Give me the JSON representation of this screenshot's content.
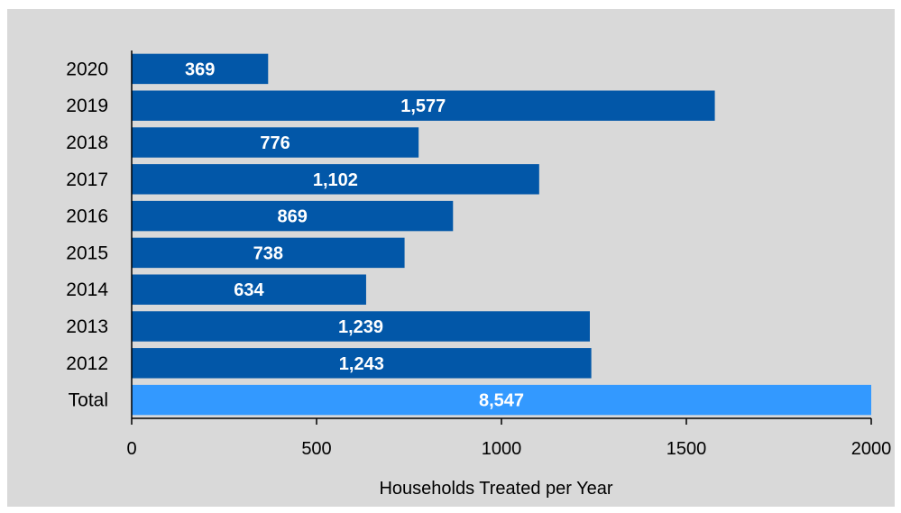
{
  "chart_data": {
    "type": "bar",
    "orientation": "horizontal",
    "categories": [
      "2020",
      "2019",
      "2018",
      "2017",
      "2016",
      "2015",
      "2014",
      "2013",
      "2012",
      "Total"
    ],
    "values": [
      369,
      1577,
      776,
      1102,
      869,
      738,
      634,
      1239,
      1243,
      8547
    ],
    "data_labels": [
      "369",
      "1,577",
      "776",
      "1,102",
      "869",
      "738",
      "634",
      "1,239",
      "1,243",
      "8,547"
    ],
    "xlim": [
      0,
      2000
    ],
    "x_ticks": [
      "0",
      "500",
      "1000",
      "1500",
      "2000"
    ],
    "xlabel": "Households Treated per Year",
    "grid": false,
    "legend": "none",
    "colors": {
      "year_bar": "#0257a8",
      "total_bar": "#3399ff",
      "background": "#d9d9d9"
    }
  }
}
